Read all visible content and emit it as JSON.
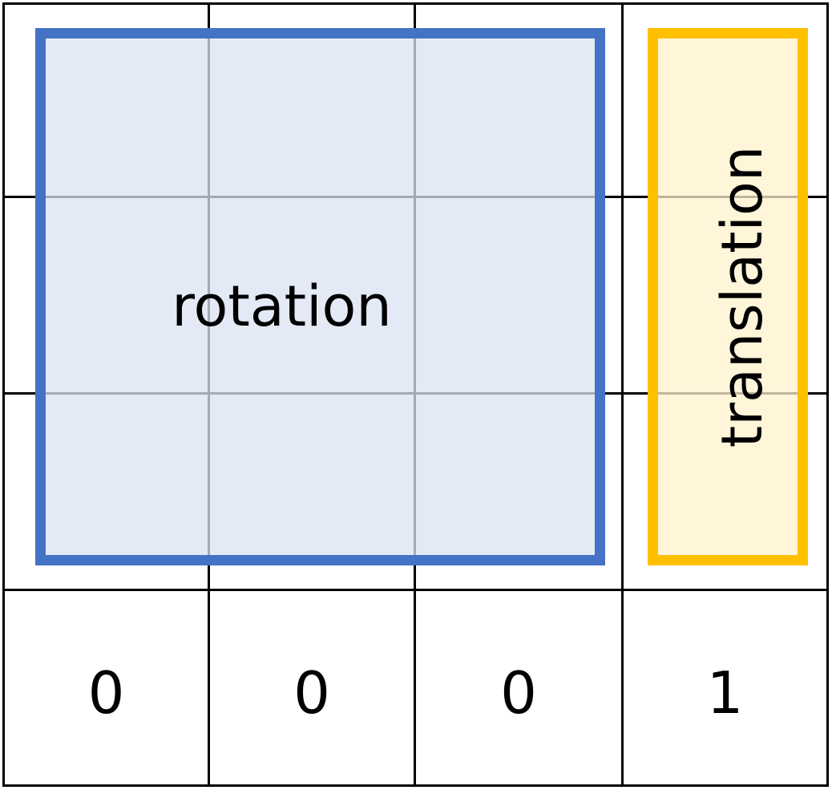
{
  "diagram": {
    "title": "",
    "regions": {
      "rotation": {
        "label": "rotation",
        "border_color": "#4472C4",
        "fill_color": "#DAE3F3"
      },
      "translation": {
        "label": "translation",
        "border_color": "#FFC000",
        "fill_color": "#FFF2CC"
      }
    },
    "bottom_row": [
      "0",
      "0",
      "0",
      "1"
    ],
    "grid_color": "#000000"
  }
}
